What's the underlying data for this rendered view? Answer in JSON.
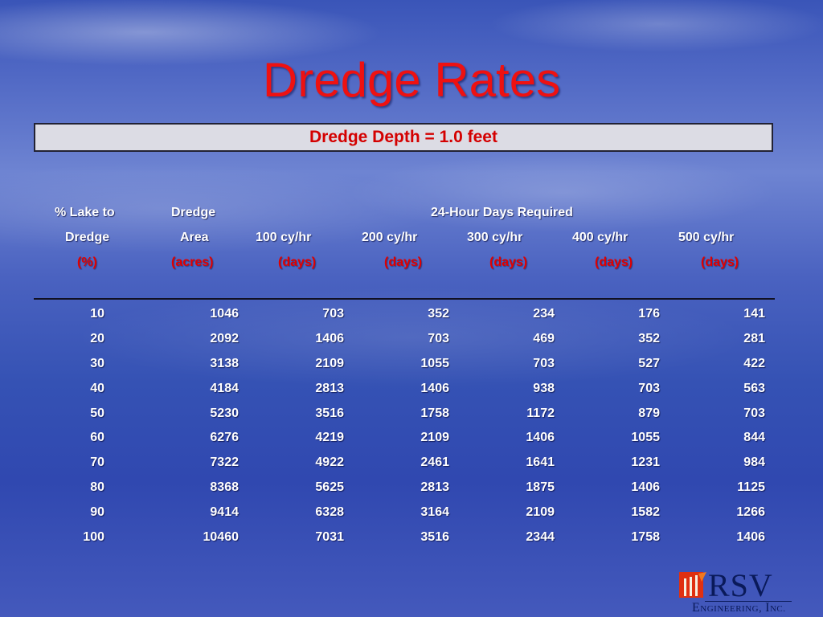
{
  "slide": {
    "title": "Dredge Rates",
    "subtitle_box": "Dredge Depth = 1.0 feet"
  },
  "table": {
    "headers": {
      "col0": [
        "% Lake to",
        "Dredge",
        "(%)"
      ],
      "col1": [
        "Dredge",
        "Area",
        "(acres)"
      ],
      "group": "24-Hour Days Required",
      "rates": [
        "100 cy/hr",
        "200 cy/hr",
        "300 cy/hr",
        "400 cy/hr",
        "500 cy/hr"
      ],
      "units": [
        "(days)",
        "(days)",
        "(days)",
        "(days)",
        "(days)"
      ]
    },
    "rows": [
      [
        "10",
        "1046",
        "703",
        "352",
        "234",
        "176",
        "141"
      ],
      [
        "20",
        "2092",
        "1406",
        "703",
        "469",
        "352",
        "281"
      ],
      [
        "30",
        "3138",
        "2109",
        "1055",
        "703",
        "527",
        "422"
      ],
      [
        "40",
        "4184",
        "2813",
        "1406",
        "938",
        "703",
        "563"
      ],
      [
        "50",
        "5230",
        "3516",
        "1758",
        "1172",
        "879",
        "703"
      ],
      [
        "60",
        "6276",
        "4219",
        "2109",
        "1406",
        "1055",
        "844"
      ],
      [
        "70",
        "7322",
        "4922",
        "2461",
        "1641",
        "1231",
        "984"
      ],
      [
        "80",
        "8368",
        "5625",
        "2813",
        "1875",
        "1406",
        "1125"
      ],
      [
        "90",
        "9414",
        "6328",
        "3164",
        "2109",
        "1582",
        "1266"
      ],
      [
        "100",
        "10460",
        "7031",
        "3516",
        "2344",
        "1758",
        "1406"
      ]
    ]
  },
  "logo": {
    "name": "RSV",
    "tagline": "Engineering, Inc.",
    "colors": {
      "mark_red": "#e03010",
      "mark_orange": "#f07820",
      "text": "#0a1a5a"
    }
  },
  "colors": {
    "title": "#ee1111",
    "box_text": "#d40000",
    "box_bg": "#dcdce4"
  }
}
